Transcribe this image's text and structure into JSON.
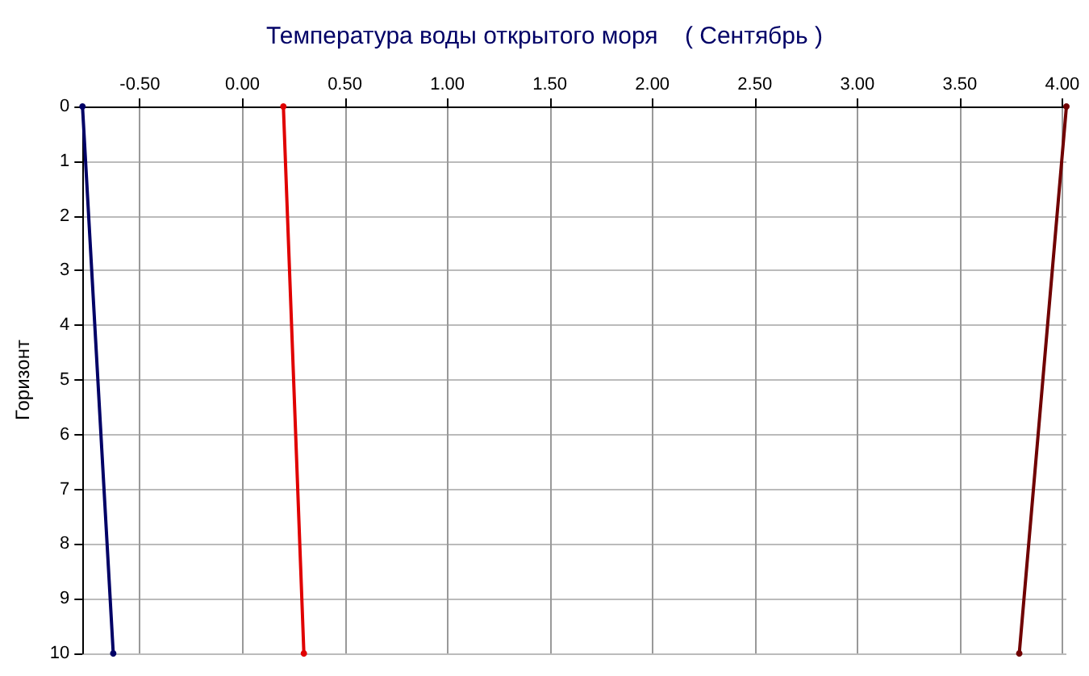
{
  "chart_data": {
    "type": "line",
    "title": "Температура воды открытого моря    ( Сентябрь )",
    "ylabel": "Горизонт",
    "xlim": [
      -0.78,
      4.02
    ],
    "xticks": [
      {
        "value": -0.5,
        "label": "-0.50"
      },
      {
        "value": 0,
        "label": "0.00"
      },
      {
        "value": 0.5,
        "label": "0.50"
      },
      {
        "value": 1,
        "label": "1.00"
      },
      {
        "value": 1.5,
        "label": "1.50"
      },
      {
        "value": 2,
        "label": "2.00"
      },
      {
        "value": 2.5,
        "label": "2.50"
      },
      {
        "value": 3,
        "label": "3.00"
      },
      {
        "value": 3.5,
        "label": "3.50"
      },
      {
        "value": 4,
        "label": "4.00"
      }
    ],
    "ylim": [
      10,
      0
    ],
    "yticks": [
      0,
      1,
      2,
      3,
      4,
      5,
      6,
      7,
      8,
      9,
      10
    ],
    "series": [
      {
        "color": "#000066",
        "x": [
          -0.78,
          -0.63
        ],
        "values": [
          0,
          10
        ]
      },
      {
        "color": "#e00000",
        "x": [
          0.2,
          0.3
        ],
        "values": [
          0,
          10
        ]
      },
      {
        "color": "#700000",
        "x": [
          4.02,
          3.79
        ],
        "values": [
          0,
          10
        ]
      }
    ],
    "grid": true,
    "marker": "circle",
    "line_style": "solid"
  }
}
